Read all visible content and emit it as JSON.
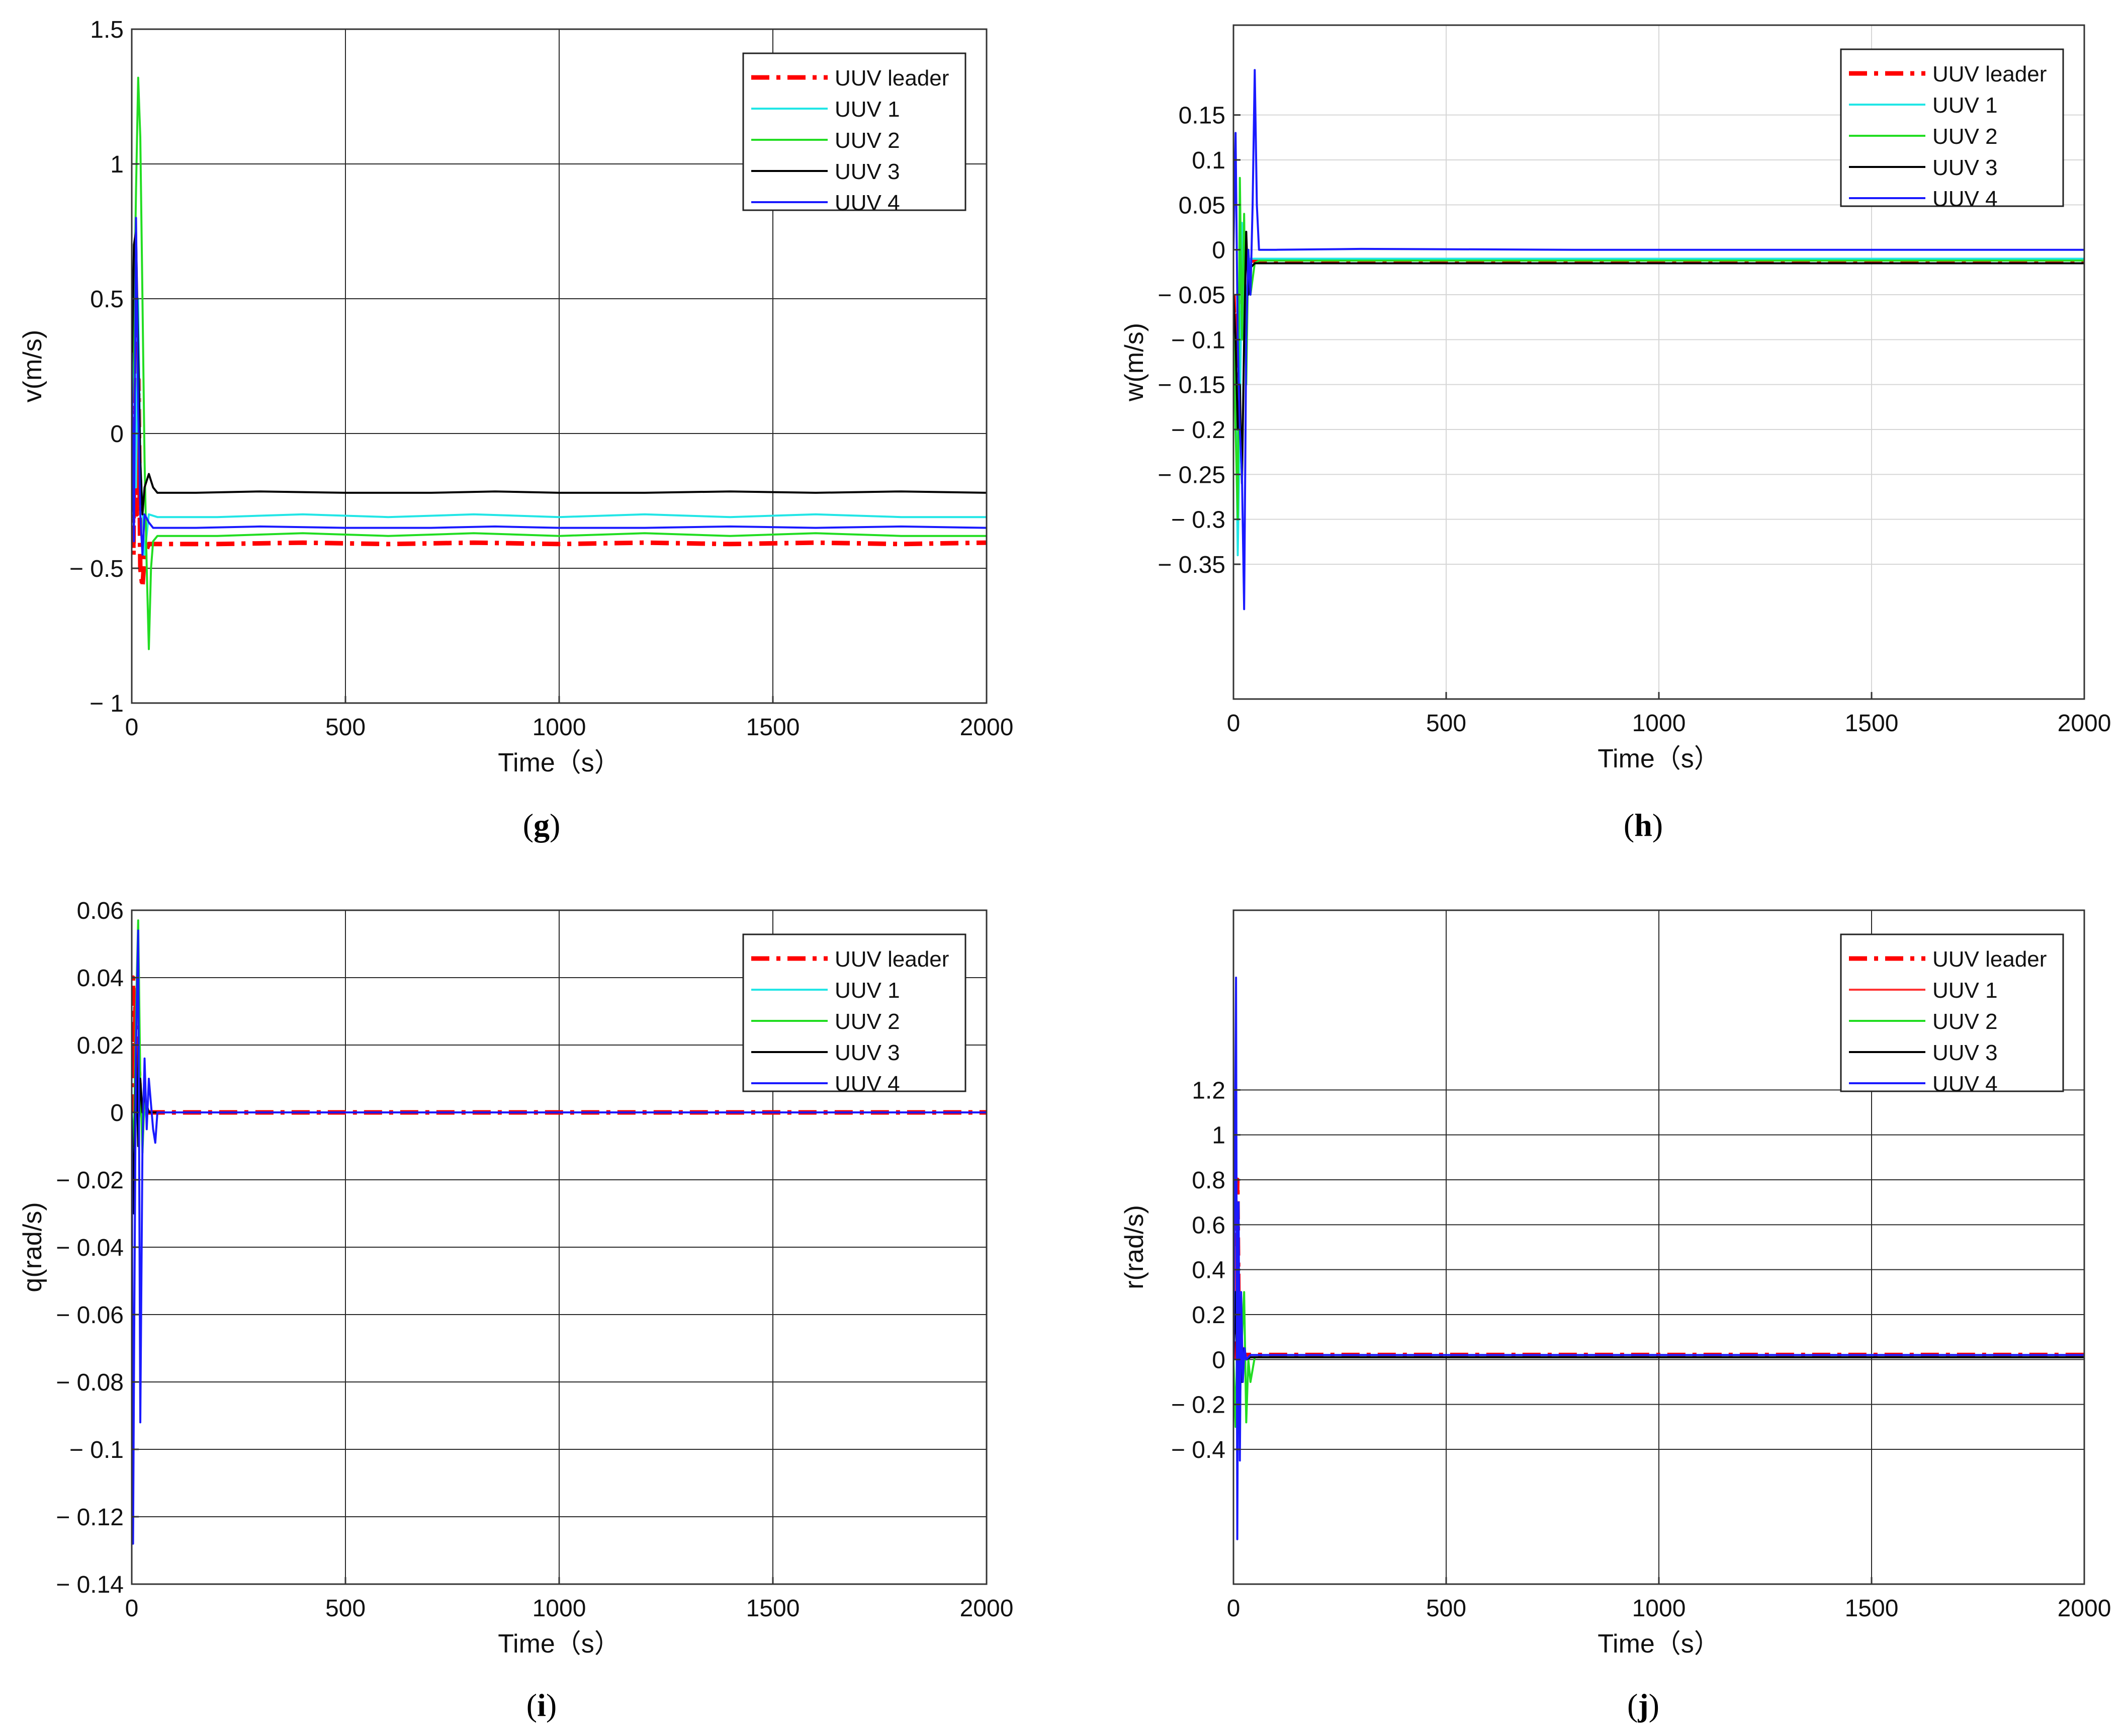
{
  "chart_data": [
    {
      "type": "line",
      "panel": "(g)",
      "xlabel": "Time（s）",
      "ylabel": "v(m/s)",
      "xlim": [
        0,
        2000
      ],
      "ylim": [
        -1,
        1.5
      ],
      "xticks": [
        0,
        500,
        1000,
        1500,
        2000
      ],
      "xtick_labels": [
        "0",
        "500",
        "1000",
        "1500",
        "2000"
      ],
      "yticks": [
        -1,
        -0.5,
        0,
        0.5,
        1,
        1.5
      ],
      "ytick_labels": [
        "− 1",
        "− 0.5",
        "0",
        "0.5",
        "1",
        "1.5"
      ],
      "grid": "dark",
      "legend_position": "top-right",
      "series": [
        {
          "name": "UUV leader",
          "color": "#ff0000",
          "dash": true,
          "x": [
            0,
            4,
            8,
            12,
            16,
            20,
            25,
            30,
            40,
            60,
            100,
            200,
            400,
            600,
            800,
            1000,
            1200,
            1400,
            1600,
            1800,
            2000
          ],
          "y": [
            0.18,
            -0.45,
            0.55,
            -0.3,
            0.2,
            -0.5,
            -0.57,
            -0.45,
            -0.41,
            -0.41,
            -0.41,
            -0.41,
            -0.405,
            -0.41,
            -0.405,
            -0.41,
            -0.405,
            -0.41,
            -0.405,
            -0.41,
            -0.405
          ]
        },
        {
          "name": "UUV 1",
          "color": "#22e6e6",
          "dash": false,
          "x": [
            0,
            5,
            10,
            15,
            20,
            30,
            40,
            60,
            100,
            200,
            400,
            600,
            800,
            1000,
            1200,
            1400,
            1600,
            1800,
            2000
          ],
          "y": [
            0.1,
            0.6,
            -0.2,
            0.5,
            -0.1,
            -0.45,
            -0.3,
            -0.31,
            -0.31,
            -0.31,
            -0.3,
            -0.31,
            -0.3,
            -0.31,
            -0.3,
            -0.31,
            -0.3,
            -0.31,
            -0.31
          ]
        },
        {
          "name": "UUV 2",
          "color": "#22dd22",
          "dash": false,
          "x": [
            0,
            5,
            10,
            15,
            20,
            25,
            30,
            35,
            40,
            45,
            50,
            60,
            80,
            120,
            200,
            400,
            600,
            800,
            1000,
            1200,
            1400,
            1600,
            1800,
            2000
          ],
          "y": [
            0.0,
            0.4,
            0.9,
            1.32,
            1.1,
            0.5,
            -0.1,
            -0.5,
            -0.8,
            -0.5,
            -0.4,
            -0.38,
            -0.38,
            -0.38,
            -0.38,
            -0.37,
            -0.38,
            -0.37,
            -0.38,
            -0.37,
            -0.38,
            -0.37,
            -0.38,
            -0.38
          ]
        },
        {
          "name": "UUV 3",
          "color": "#000000",
          "dash": false,
          "x": [
            0,
            5,
            10,
            15,
            20,
            25,
            30,
            40,
            50,
            60,
            80,
            150,
            300,
            500,
            700,
            850,
            1000,
            1200,
            1400,
            1600,
            1800,
            2000
          ],
          "y": [
            0.2,
            0.7,
            0.75,
            0.3,
            -0.1,
            -0.3,
            -0.2,
            -0.15,
            -0.2,
            -0.22,
            -0.22,
            -0.22,
            -0.215,
            -0.22,
            -0.22,
            -0.215,
            -0.22,
            -0.22,
            -0.215,
            -0.22,
            -0.215,
            -0.22
          ]
        },
        {
          "name": "UUV 4",
          "color": "#1a1aff",
          "dash": false,
          "x": [
            0,
            5,
            10,
            15,
            20,
            25,
            30,
            40,
            50,
            60,
            80,
            150,
            300,
            500,
            700,
            850,
            1000,
            1200,
            1400,
            1600,
            1800,
            2000
          ],
          "y": [
            0.3,
            -0.4,
            0.8,
            0.1,
            -0.3,
            -0.45,
            -0.3,
            -0.33,
            -0.35,
            -0.35,
            -0.35,
            -0.35,
            -0.345,
            -0.35,
            -0.35,
            -0.345,
            -0.35,
            -0.35,
            -0.345,
            -0.35,
            -0.345,
            -0.35
          ]
        }
      ]
    },
    {
      "type": "line",
      "panel": "(h)",
      "xlabel": "Time（s）",
      "ylabel": "w(m/s)",
      "xlim": [
        0,
        2000
      ],
      "ylim": [
        -0.5,
        0.25
      ],
      "xticks": [
        0,
        500,
        1000,
        1500,
        2000
      ],
      "xtick_labels": [
        "0",
        "500",
        "1000",
        "1500",
        "2000"
      ],
      "yticks": [
        -0.35,
        -0.3,
        -0.25,
        -0.2,
        -0.15,
        -0.1,
        -0.05,
        0,
        0.05,
        0.1,
        0.15
      ],
      "ytick_labels": [
        "− 0.35",
        "− 0.3",
        "− 0.25",
        "− 0.2",
        "− 0.15",
        "− 0.1",
        "− 0.05",
        "0",
        "0.05",
        "0.1",
        "0.15"
      ],
      "grid": "light",
      "legend_position": "top-right",
      "series": [
        {
          "name": "UUV leader",
          "color": "#ff0000",
          "dash": true,
          "x": [
            0,
            4,
            8,
            12,
            16,
            20,
            30,
            50,
            100,
            400,
            800,
            1200,
            1600,
            2000
          ],
          "y": [
            -0.05,
            -0.12,
            -0.07,
            -0.14,
            -0.05,
            -0.02,
            -0.012,
            -0.012,
            -0.012,
            -0.012,
            -0.012,
            -0.012,
            -0.012,
            -0.012
          ]
        },
        {
          "name": "UUV 1",
          "color": "#22e6e6",
          "dash": false,
          "x": [
            0,
            5,
            10,
            15,
            20,
            25,
            30,
            40,
            60,
            100,
            400,
            800,
            1200,
            1600,
            2000
          ],
          "y": [
            -0.1,
            -0.15,
            -0.34,
            -0.2,
            0.03,
            -0.1,
            -0.05,
            -0.01,
            -0.01,
            -0.01,
            -0.01,
            -0.01,
            -0.01,
            -0.01,
            -0.01
          ]
        },
        {
          "name": "UUV 2",
          "color": "#22dd22",
          "dash": false,
          "x": [
            0,
            5,
            10,
            15,
            20,
            25,
            30,
            35,
            40,
            50,
            60,
            100,
            400,
            800,
            1200,
            1600,
            2000
          ],
          "y": [
            -0.05,
            -0.2,
            -0.3,
            0.08,
            -0.1,
            0.04,
            -0.15,
            0.0,
            -0.05,
            -0.015,
            -0.012,
            -0.012,
            -0.012,
            -0.012,
            -0.012,
            -0.012,
            -0.012
          ]
        },
        {
          "name": "UUV 3",
          "color": "#000000",
          "dash": false,
          "x": [
            0,
            5,
            10,
            15,
            20,
            25,
            30,
            35,
            40,
            50,
            60,
            100,
            400,
            800,
            1200,
            1600,
            2000
          ],
          "y": [
            -0.05,
            -0.1,
            -0.2,
            -0.15,
            -0.26,
            -0.1,
            0.02,
            -0.05,
            -0.02,
            -0.015,
            -0.015,
            -0.015,
            -0.015,
            -0.015,
            -0.015,
            -0.015,
            -0.015
          ]
        },
        {
          "name": "UUV 4",
          "color": "#1a1aff",
          "dash": false,
          "x": [
            0,
            5,
            10,
            15,
            20,
            25,
            30,
            35,
            40,
            45,
            50,
            55,
            60,
            70,
            100,
            300,
            800,
            1200,
            1600,
            2000
          ],
          "y": [
            0.0,
            0.13,
            -0.1,
            -0.2,
            -0.25,
            -0.4,
            -0.1,
            0.0,
            -0.05,
            0.05,
            0.2,
            0.05,
            0.0,
            0.0,
            0.0,
            0.001,
            0.0,
            0.0,
            0.0,
            0.0
          ]
        }
      ]
    },
    {
      "type": "line",
      "panel": "(i)",
      "xlabel": "Time（s）",
      "ylabel": "q(rad/s)",
      "xlim": [
        0,
        2000
      ],
      "ylim": [
        -0.14,
        0.06
      ],
      "xticks": [
        0,
        500,
        1000,
        1500,
        2000
      ],
      "xtick_labels": [
        "0",
        "500",
        "1000",
        "1500",
        "2000"
      ],
      "yticks": [
        -0.14,
        -0.12,
        -0.1,
        -0.08,
        -0.06,
        -0.04,
        -0.02,
        0,
        0.02,
        0.04,
        0.06
      ],
      "ytick_labels": [
        "− 0.14",
        "− 0.12",
        "− 0.1",
        "− 0.08",
        "− 0.06",
        "− 0.04",
        "− 0.02",
        "0",
        "0.02",
        "0.04",
        "0.06"
      ],
      "grid": "dark",
      "legend_position": "top-right",
      "series": [
        {
          "name": "UUV leader",
          "color": "#ff0000",
          "dash": true,
          "x": [
            0,
            3,
            6,
            9,
            12,
            15,
            20,
            30,
            50,
            100,
            500,
            1000,
            1500,
            2000
          ],
          "y": [
            0.0,
            0.04,
            0.01,
            0.035,
            0.0,
            0.02,
            0.0,
            0.0,
            0.0,
            0.0,
            0.0,
            0.0,
            0.0,
            0.0
          ]
        },
        {
          "name": "UUV 1",
          "color": "#22e6e6",
          "dash": false,
          "x": [
            0,
            5,
            10,
            15,
            20,
            25,
            30,
            40,
            60,
            100,
            500,
            1000,
            1500,
            2000
          ],
          "y": [
            0.0,
            -0.02,
            0.02,
            -0.01,
            0.01,
            -0.005,
            0.0,
            0.0,
            0.0,
            0.0,
            0.0,
            0.0,
            0.0,
            0.0
          ]
        },
        {
          "name": "UUV 2",
          "color": "#22dd22",
          "dash": false,
          "x": [
            0,
            5,
            10,
            15,
            20,
            25,
            30,
            35,
            45,
            60,
            100,
            500,
            1000,
            1500,
            2000
          ],
          "y": [
            0.0,
            -0.01,
            0.03,
            0.057,
            0.01,
            -0.012,
            0.005,
            0.0,
            0.0,
            0.0,
            0.0,
            0.0,
            0.0,
            0.0,
            0.0
          ]
        },
        {
          "name": "UUV 3",
          "color": "#000000",
          "dash": false,
          "x": [
            0,
            5,
            10,
            15,
            20,
            25,
            30,
            40,
            50,
            60,
            100,
            500,
            1000,
            1500,
            2000
          ],
          "y": [
            0.0,
            -0.03,
            0.02,
            -0.01,
            0.01,
            0.0,
            0.005,
            0.0,
            0.0,
            0.0,
            0.0,
            0.0,
            0.0,
            0.0,
            0.0
          ]
        },
        {
          "name": "UUV 4",
          "color": "#1a1aff",
          "dash": false,
          "x": [
            0,
            3,
            6,
            10,
            15,
            20,
            25,
            30,
            35,
            40,
            50,
            55,
            60,
            70,
            100,
            500,
            1000,
            1500,
            2000
          ],
          "y": [
            0.0,
            -0.128,
            -0.06,
            0.02,
            0.054,
            -0.092,
            -0.01,
            0.016,
            -0.005,
            0.01,
            -0.005,
            -0.009,
            0.0,
            0.0,
            0.0,
            0.0,
            0.0,
            0.0,
            0.0
          ]
        }
      ]
    },
    {
      "type": "line",
      "panel": "(j)",
      "xlabel": "Time（s）",
      "ylabel": "r(rad/s)",
      "xlim": [
        0,
        2000
      ],
      "ylim": [
        -1,
        2
      ],
      "xticks": [
        0,
        500,
        1000,
        1500,
        2000
      ],
      "xtick_labels": [
        "0",
        "500",
        "1000",
        "1500",
        "2000"
      ],
      "yticks": [
        -0.4,
        -0.2,
        0,
        0.2,
        0.4,
        0.6,
        0.8,
        1,
        1.2
      ],
      "ytick_labels": [
        "− 0.4",
        "− 0.2",
        "0",
        "0.2",
        "0.4",
        "0.6",
        "0.8",
        "1",
        "1.2"
      ],
      "grid": "dark",
      "legend_position": "top-right",
      "series": [
        {
          "name": "UUV leader",
          "color": "#ff0000",
          "dash": true,
          "x": [
            0,
            3,
            6,
            9,
            12,
            15,
            20,
            30,
            50,
            100,
            500,
            1000,
            1500,
            2000
          ],
          "y": [
            0.0,
            1.0,
            0.4,
            0.8,
            0.2,
            0.1,
            0.02,
            0.02,
            0.02,
            0.02,
            0.02,
            0.02,
            0.02,
            0.02
          ]
        },
        {
          "name": "UUV 1",
          "color": "#ff3333",
          "dash": false,
          "x": [
            0,
            5,
            10,
            15,
            20,
            30,
            50,
            100,
            500,
            1000,
            1500,
            2000
          ],
          "y": [
            0.0,
            0.5,
            -0.2,
            0.1,
            0.0,
            0.01,
            0.01,
            0.01,
            0.01,
            0.01,
            0.01,
            0.01
          ]
        },
        {
          "name": "UUV 2",
          "color": "#22dd22",
          "dash": false,
          "x": [
            0,
            5,
            10,
            15,
            20,
            25,
            30,
            35,
            40,
            50,
            60,
            100,
            500,
            1000,
            1500,
            2000
          ],
          "y": [
            0.0,
            -0.3,
            0.2,
            -0.2,
            0.1,
            0.3,
            -0.28,
            0.0,
            -0.1,
            0.01,
            0.01,
            0.01,
            0.01,
            0.01,
            0.01,
            0.01
          ]
        },
        {
          "name": "UUV 3",
          "color": "#000000",
          "dash": false,
          "x": [
            0,
            5,
            10,
            15,
            20,
            25,
            30,
            40,
            60,
            100,
            500,
            1000,
            1500,
            2000
          ],
          "y": [
            0.0,
            0.3,
            -0.2,
            0.1,
            -0.1,
            0.05,
            0.0,
            0.01,
            0.01,
            0.01,
            0.01,
            0.01,
            0.01,
            0.01
          ]
        },
        {
          "name": "UUV 4",
          "color": "#1a1aff",
          "dash": false,
          "x": [
            0,
            3,
            6,
            9,
            12,
            15,
            18,
            22,
            26,
            30,
            40,
            60,
            100,
            500,
            1000,
            1500,
            2000
          ],
          "y": [
            0.0,
            0.8,
            1.7,
            -0.8,
            0.7,
            -0.45,
            0.3,
            -0.1,
            0.05,
            0.0,
            0.02,
            0.02,
            0.02,
            0.02,
            0.02,
            0.02,
            0.02
          ]
        }
      ]
    }
  ]
}
